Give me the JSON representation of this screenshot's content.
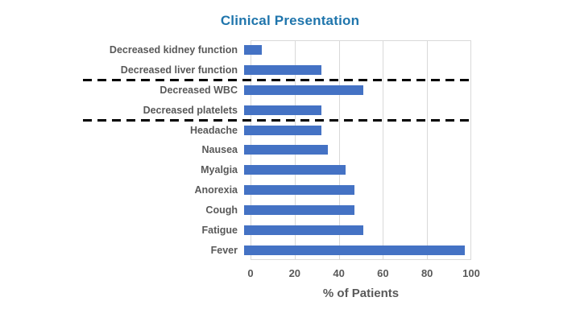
{
  "title": "Clinical Presentation",
  "colors": {
    "bar": "#4472C4",
    "title_text": "#1F75AC",
    "axis_text": "#595959",
    "gridline": "#D9D9D9",
    "separator": "#000000"
  },
  "chart_data": {
    "type": "bar",
    "orientation": "horizontal",
    "title": "Clinical Presentation",
    "xlabel": "% of Patients",
    "ylabel": "",
    "xlim": [
      0,
      100
    ],
    "x_ticks": [
      0,
      20,
      40,
      60,
      80,
      100
    ],
    "grid": true,
    "legend": false,
    "categories": [
      "Decreased kidney function",
      "Decreased liver function",
      "Decreased WBC",
      "Decreased platelets",
      "Headache",
      "Nausea",
      "Myalgia",
      "Anorexia",
      "Cough",
      "Fatigue",
      "Fever"
    ],
    "values": [
      8,
      35,
      54,
      35,
      35,
      38,
      46,
      50,
      50,
      54,
      100
    ],
    "separators_after_index": [
      1,
      3
    ]
  }
}
